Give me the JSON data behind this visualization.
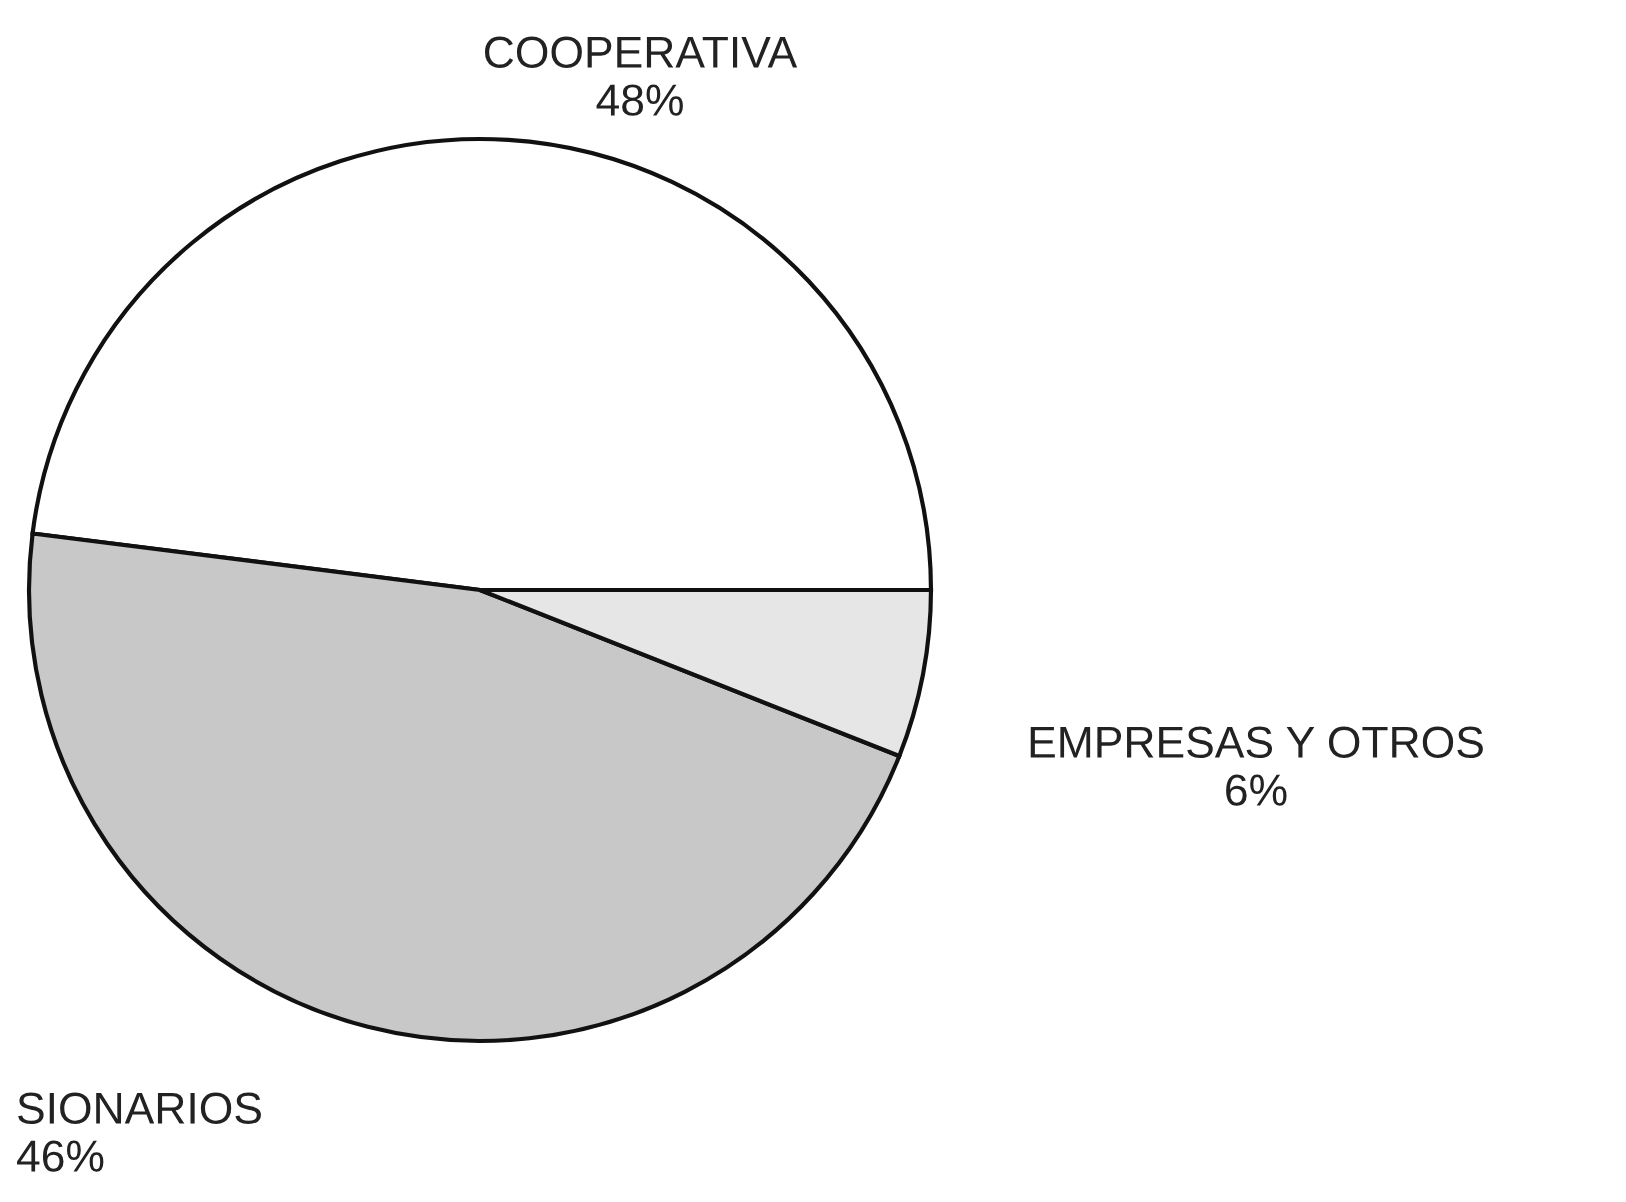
{
  "chart_data": {
    "type": "pie",
    "categories": [
      "COOPERATIVA",
      "SIONARIOS",
      "EMPRESAS Y OTROS"
    ],
    "values": [
      48,
      46,
      6
    ],
    "value_labels": [
      "48%",
      "46%",
      "6%"
    ],
    "colors": [
      "#ffffff",
      "#c8c8c8",
      "#e6e6e6"
    ]
  }
}
